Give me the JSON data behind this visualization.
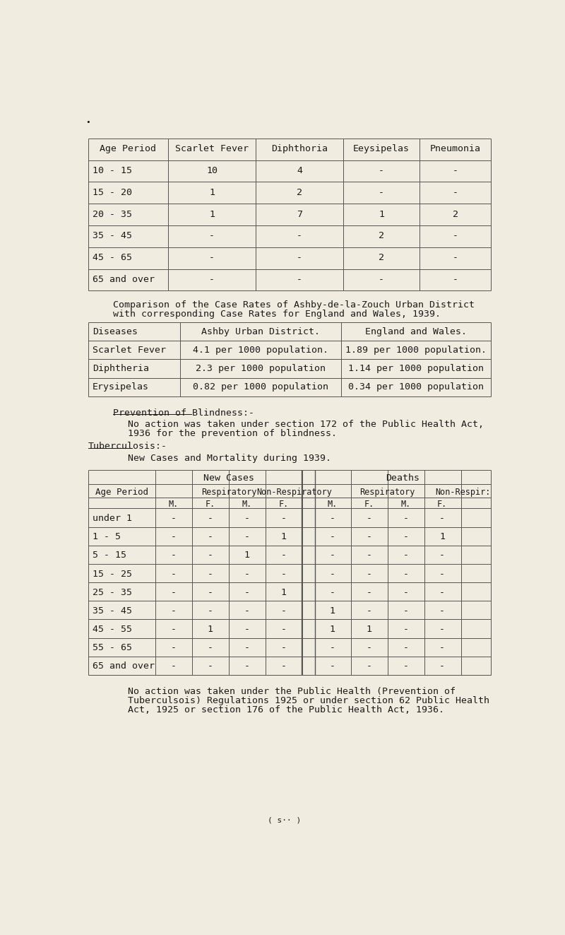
{
  "bg_color": "#f0ede0",
  "text_color": "#1a1a1a",
  "line_color": "#555555",
  "table1_header": [
    "Age Period",
    "Scarlet Fever",
    "Diphthoria",
    "Eeysipelas",
    "Pneumonia"
  ],
  "table1_rows": [
    [
      "10 - 15",
      "10",
      "4",
      "-",
      "-"
    ],
    [
      "15 - 20",
      "1",
      "2",
      "-",
      "-"
    ],
    [
      "20 - 35",
      "1",
      "7",
      "1",
      "2"
    ],
    [
      "35 - 45",
      "-",
      "-",
      "2",
      "-"
    ],
    [
      "45 - 65",
      "-",
      "-",
      "2",
      "-"
    ],
    [
      "65 and over",
      "-",
      "-",
      "-",
      "-"
    ]
  ],
  "comparison_line1": "Comparison of the Case Rates of Ashby-de-la-Zouch Urban District",
  "comparison_line2": "with corresponding Case Rates for England and Wales, 1939.",
  "table2_header": [
    "Diseases",
    "Ashby Urban District.",
    "England and Wales."
  ],
  "table2_rows": [
    [
      "Scarlet Fever",
      "4.1 per 1000 population.",
      "1.89 per 1000 population."
    ],
    [
      "Diphtheria",
      "2.3 per 1000 population",
      "1.14 per 1000 population"
    ],
    [
      "Erysipelas",
      "0.82 per 1000 population",
      "0.34 per 1000 population"
    ]
  ],
  "blindness_heading": "Prevention of Blindness:-",
  "blindness_line1": "No action was taken under section 172 of the Public Health Act,",
  "blindness_line2": "1936 for the prevention of blindness.",
  "tb_heading": "Tuberculosis:-",
  "tb_subline": "New Cases and Mortality during 1939.",
  "table3_rows": [
    [
      "under 1",
      "-",
      "-",
      "-",
      "-",
      "-",
      "-",
      "-",
      "-"
    ],
    [
      "1 - 5",
      "-",
      "-",
      "-",
      "1",
      "-",
      "-",
      "-",
      "1"
    ],
    [
      "5 - 15",
      "-",
      "-",
      "1",
      "-",
      "-",
      "-",
      "-",
      "-"
    ],
    [
      "15 - 25",
      "-",
      "-",
      "-",
      "-",
      "-",
      "-",
      "-",
      "-"
    ],
    [
      "25 - 35",
      "-",
      "-",
      "-",
      "1",
      "-",
      "-",
      "-",
      "-"
    ],
    [
      "35 - 45",
      "-",
      "-",
      "-",
      "-",
      "1",
      "-",
      "-",
      "-"
    ],
    [
      "45 - 55",
      "-",
      "1",
      "-",
      "-",
      "1",
      "1",
      "-",
      "-"
    ],
    [
      "55 - 65",
      "-",
      "-",
      "-",
      "-",
      "-",
      "-",
      "-",
      "-"
    ],
    [
      "65 and over",
      "-",
      "-",
      "-",
      "-",
      "-",
      "-",
      "-",
      "-"
    ]
  ],
  "footer_line1": "No action was taken under the Public Health (Prevention of",
  "footer_line2": "Tuberculsois) Regulations 1925 or under section 62 Public Health",
  "footer_line3": "Act, 1925 or section 176 of the Public Health Act, 1936.",
  "page_ref": "( s·· )"
}
